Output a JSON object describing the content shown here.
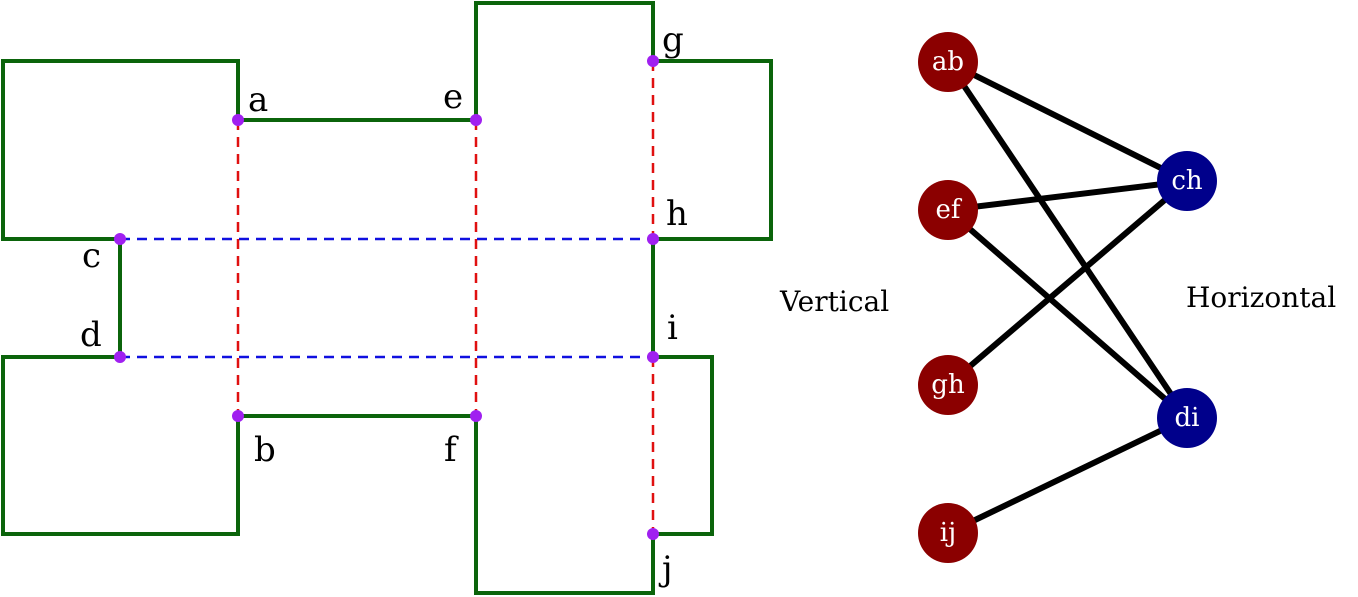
{
  "colors": {
    "outline": "#0b640b",
    "vertical_dash": "#e01010",
    "horizontal_dash": "#1010e0",
    "point": "#a020f0",
    "vertical_node": "#8b0000",
    "horizontal_node": "#00008b",
    "edge": "#000000"
  },
  "points": {
    "a": "a",
    "b": "b",
    "c": "c",
    "d": "d",
    "e": "e",
    "f": "f",
    "g": "g",
    "h": "h",
    "i": "i",
    "j": "j"
  },
  "graph": {
    "vertical_label": "Vertical",
    "horizontal_label": "Horizontal",
    "vertical_nodes": [
      "ab",
      "ef",
      "gh",
      "ij"
    ],
    "horizontal_nodes": [
      "ch",
      "di"
    ],
    "edges": [
      [
        "ab",
        "ch"
      ],
      [
        "ab",
        "di"
      ],
      [
        "ef",
        "ch"
      ],
      [
        "ef",
        "di"
      ],
      [
        "gh",
        "ch"
      ],
      [
        "ij",
        "di"
      ]
    ]
  }
}
